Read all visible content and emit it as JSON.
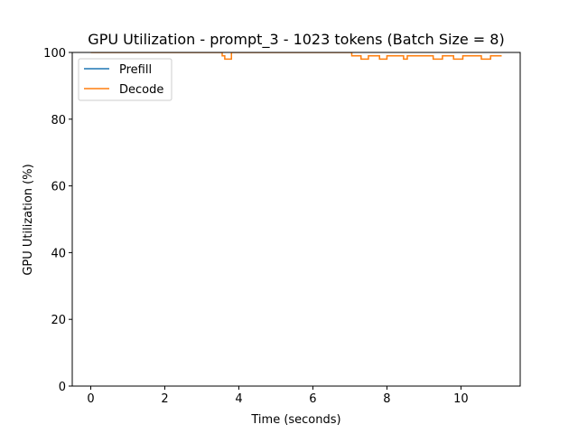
{
  "chart_data": {
    "type": "line",
    "title": "GPU Utilization - prompt_3 - 1023 tokens (Batch Size = 8)",
    "xlabel": "Time (seconds)",
    "ylabel": "GPU Utilization (%)",
    "xlim": [
      -0.5,
      11.6
    ],
    "ylim": [
      0,
      100
    ],
    "xticks": [
      0,
      2,
      4,
      6,
      8,
      10
    ],
    "yticks": [
      0,
      20,
      40,
      60,
      80,
      100
    ],
    "grid": false,
    "legend_position": "upper-left",
    "series": [
      {
        "name": "Prefill",
        "color": "#1f77b4",
        "step": "post",
        "points": []
      },
      {
        "name": "Decode",
        "color": "#ff7f0e",
        "step": "post",
        "points": [
          [
            0.0,
            100
          ],
          [
            3.4,
            100
          ],
          [
            3.55,
            99
          ],
          [
            3.62,
            98
          ],
          [
            3.8,
            100
          ],
          [
            7.05,
            99
          ],
          [
            7.3,
            98
          ],
          [
            7.5,
            99
          ],
          [
            7.8,
            98
          ],
          [
            8.0,
            99
          ],
          [
            8.45,
            98
          ],
          [
            8.55,
            99
          ],
          [
            9.25,
            98
          ],
          [
            9.5,
            99
          ],
          [
            9.8,
            98
          ],
          [
            10.05,
            99
          ],
          [
            10.55,
            98
          ],
          [
            10.8,
            99
          ],
          [
            11.1,
            99
          ]
        ]
      }
    ]
  }
}
